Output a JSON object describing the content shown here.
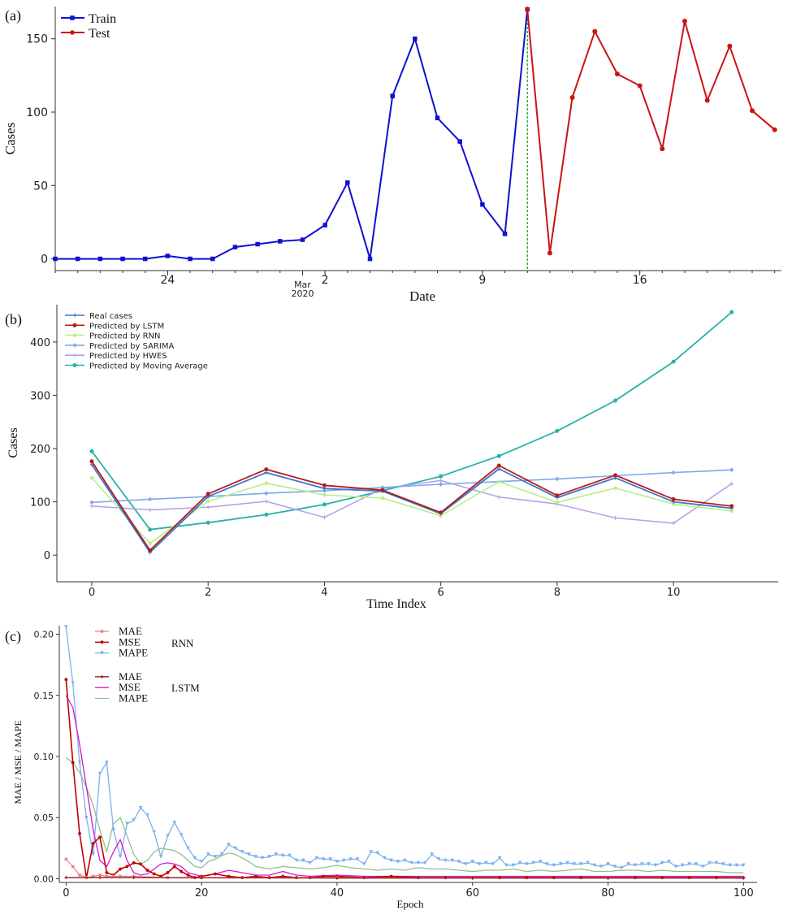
{
  "colors": {
    "train": "#1010d0",
    "test": "#c81414",
    "split_line": "#1a9a1a",
    "real": "#3a78c8",
    "lstm": "#b81c1c",
    "rnn": "#b9ee8a",
    "sarima": "#7ea8ef",
    "hwes": "#b49de8",
    "ma": "#26b3a8",
    "rnn_mae": "#f08080",
    "rnn_mse": "#c00000",
    "rnn_mape": "#7ab0ec",
    "lstm_mae": "#8b0000",
    "lstm_mse": "#d21ad2",
    "lstm_mape": "#8fbf8f"
  },
  "chart_data": [
    {
      "panel_label": "(a)",
      "type": "line",
      "xlabel": "Date",
      "ylabel": "Cases",
      "ylim": [
        -8,
        172
      ],
      "yticks": [
        "0",
        "50",
        "100",
        "150"
      ],
      "xticks": [
        "24",
        "2",
        "9",
        "16"
      ],
      "x_sublabel_month": "Mar",
      "x_sublabel_year": "2020",
      "legend_position": "top-left",
      "series": [
        {
          "name": "Train",
          "x": [
            0,
            1,
            2,
            3,
            4,
            5,
            6,
            7,
            8,
            9,
            10,
            11,
            12,
            13,
            14,
            15,
            16,
            17,
            18,
            19,
            20,
            21
          ],
          "values": [
            0,
            0,
            0,
            0,
            0,
            2,
            0,
            0,
            8,
            10,
            12,
            13,
            23,
            52,
            0,
            111,
            150,
            96,
            80,
            37,
            17,
            170
          ]
        },
        {
          "name": "Test",
          "x": [
            21,
            22,
            23,
            24,
            25,
            26,
            27,
            28,
            29,
            30,
            31,
            32
          ],
          "values": [
            170,
            4,
            110,
            155,
            126,
            118,
            75,
            162,
            108,
            145,
            101,
            88
          ]
        }
      ]
    },
    {
      "panel_label": "(b)",
      "type": "line",
      "xlabel": "Time Index",
      "ylabel": "Cases",
      "xlim": [
        -0.6,
        11.8
      ],
      "ylim": [
        -50,
        470
      ],
      "xticks": [
        "0",
        "2",
        "4",
        "6",
        "8",
        "10"
      ],
      "yticks": [
        "0",
        "100",
        "200",
        "300",
        "400"
      ],
      "legend_position": "top-left",
      "x": [
        0,
        1,
        2,
        3,
        4,
        5,
        6,
        7,
        8,
        9,
        10,
        11
      ],
      "series": [
        {
          "name": "Real cases",
          "values": [
            170,
            5,
            110,
            155,
            125,
            120,
            78,
            162,
            108,
            145,
            100,
            88
          ]
        },
        {
          "name": "Predicted by LSTM",
          "values": [
            176,
            9,
            115,
            161,
            131,
            122,
            80,
            168,
            112,
            150,
            105,
            92
          ]
        },
        {
          "name": "Predicted by RNN",
          "values": [
            145,
            22,
            101,
            135,
            113,
            107,
            74,
            138,
            99,
            126,
            96,
            83
          ]
        },
        {
          "name": "Predicted by SARIMA",
          "values": [
            99,
            105,
            110,
            116,
            121,
            127,
            133,
            138,
            143,
            149,
            155,
            160
          ]
        },
        {
          "name": "Predicted by HWES",
          "values": [
            92,
            85,
            90,
            101,
            71,
            125,
            140,
            109,
            96,
            70,
            60,
            134
          ]
        },
        {
          "name": "Predicted by Moving Average",
          "values": [
            195,
            48,
            61,
            76,
            95,
            121,
            148,
            186,
            233,
            290,
            363,
            456
          ]
        }
      ]
    },
    {
      "panel_label": "(c)",
      "type": "line",
      "xlabel": "Epoch",
      "ylabel": "MAE / MSE / MAPE",
      "xlim": [
        -1,
        102
      ],
      "ylim": [
        -0.003,
        0.207
      ],
      "xticks": [
        "0",
        "20",
        "40",
        "60",
        "80",
        "100"
      ],
      "yticks": [
        "0.00",
        "0.05",
        "0.10",
        "0.15",
        "0.20"
      ],
      "legend_position": "top-left",
      "legend_group_rnn": "RNN",
      "legend_group_lstm": "LSTM",
      "series": [
        {
          "name": "MAE",
          "group": "RNN",
          "x": [
            0,
            1,
            2,
            3,
            4,
            5,
            6,
            7,
            8,
            10,
            15,
            20,
            40,
            60,
            80,
            100
          ],
          "values": [
            0.016,
            0.01,
            0.003,
            0.001,
            0.002,
            0.003,
            0.002,
            0.002,
            0.002,
            0.002,
            0.001,
            0.001,
            0.001,
            0.0008,
            0.0008,
            0.0008
          ]
        },
        {
          "name": "MSE",
          "group": "RNN",
          "x": [
            0,
            1,
            2,
            3,
            4,
            5,
            6,
            7,
            8,
            9,
            10,
            11,
            12,
            13,
            14,
            15,
            16,
            17,
            18,
            19,
            20,
            22,
            24,
            26,
            28,
            30,
            32,
            34,
            36,
            38,
            40,
            44,
            48,
            52,
            56,
            60,
            64,
            68,
            72,
            76,
            80,
            84,
            88,
            92,
            96,
            100
          ],
          "values": [
            0.163,
            0.095,
            0.037,
            0.001,
            0.029,
            0.034,
            0.005,
            0.003,
            0.008,
            0.01,
            0.013,
            0.012,
            0.007,
            0.004,
            0.002,
            0.005,
            0.01,
            0.006,
            0.003,
            0.001,
            0.002,
            0.004,
            0.002,
            0.001,
            0.002,
            0.001,
            0.002,
            0.001,
            0.001,
            0.002,
            0.002,
            0.001,
            0.002,
            0.001,
            0.001,
            0.001,
            0.001,
            0.001,
            0.001,
            0.001,
            0.001,
            0.001,
            0.001,
            0.001,
            0.001,
            0.001
          ]
        },
        {
          "name": "MAPE",
          "group": "RNN",
          "x": [
            0,
            1,
            2,
            3,
            4,
            5,
            6,
            7,
            8,
            9,
            10,
            11,
            12,
            13,
            14,
            15,
            16,
            17,
            18,
            19,
            20,
            21,
            22,
            23,
            24,
            25,
            26,
            27,
            28,
            29,
            30,
            31,
            32,
            33,
            34,
            35,
            36,
            37,
            38,
            39,
            40,
            41,
            42,
            43,
            44,
            45,
            46,
            47,
            48,
            49,
            50,
            51,
            52,
            53,
            54,
            55,
            56,
            57,
            58,
            59,
            60,
            61,
            62,
            63,
            64,
            65,
            66,
            67,
            68,
            69,
            70,
            71,
            72,
            73,
            74,
            75,
            76,
            77,
            78,
            79,
            80,
            81,
            82,
            83,
            84,
            85,
            86,
            87,
            88,
            89,
            90,
            91,
            92,
            93,
            94,
            95,
            96,
            97,
            98,
            99,
            100
          ],
          "values": [
            0.206,
            0.16,
            0.095,
            0.05,
            0.02,
            0.086,
            0.095,
            0.04,
            0.018,
            0.045,
            0.048,
            0.058,
            0.052,
            0.038,
            0.018,
            0.035,
            0.046,
            0.036,
            0.025,
            0.017,
            0.014,
            0.02,
            0.018,
            0.02,
            0.028,
            0.025,
            0.022,
            0.02,
            0.018,
            0.017,
            0.018,
            0.02,
            0.019,
            0.019,
            0.015,
            0.015,
            0.013,
            0.017,
            0.016,
            0.016,
            0.014,
            0.015,
            0.016,
            0.016,
            0.012,
            0.022,
            0.021,
            0.017,
            0.015,
            0.014,
            0.015,
            0.013,
            0.013,
            0.013,
            0.02,
            0.016,
            0.015,
            0.015,
            0.014,
            0.012,
            0.014,
            0.012,
            0.013,
            0.012,
            0.017,
            0.011,
            0.011,
            0.013,
            0.012,
            0.013,
            0.014,
            0.012,
            0.011,
            0.012,
            0.013,
            0.012,
            0.012,
            0.013,
            0.011,
            0.01,
            0.012,
            0.01,
            0.009,
            0.012,
            0.011,
            0.012,
            0.012,
            0.011,
            0.013,
            0.014,
            0.01,
            0.011,
            0.012,
            0.012,
            0.01,
            0.013,
            0.013,
            0.012,
            0.011,
            0.011,
            0.011
          ]
        },
        {
          "name": "MAE",
          "group": "LSTM",
          "x": [
            0,
            5,
            10,
            20,
            40,
            60,
            80,
            100
          ],
          "values": [
            0.001,
            0.001,
            0.001,
            0.0008,
            0.0006,
            0.0006,
            0.0006,
            0.0006
          ]
        },
        {
          "name": "MSE",
          "group": "LSTM",
          "x": [
            0,
            1,
            2,
            3,
            4,
            5,
            6,
            7,
            8,
            9,
            10,
            11,
            12,
            13,
            14,
            15,
            16,
            17,
            18,
            20,
            22,
            24,
            26,
            28,
            30,
            32,
            34,
            36,
            40,
            44,
            48,
            52,
            60,
            70,
            80,
            90,
            100
          ],
          "values": [
            0.15,
            0.14,
            0.11,
            0.075,
            0.04,
            0.015,
            0.01,
            0.022,
            0.032,
            0.015,
            0.005,
            0.003,
            0.004,
            0.008,
            0.012,
            0.013,
            0.012,
            0.01,
            0.005,
            0.002,
            0.004,
            0.007,
            0.005,
            0.003,
            0.003,
            0.006,
            0.003,
            0.002,
            0.003,
            0.002,
            0.002,
            0.002,
            0.002,
            0.002,
            0.002,
            0.002,
            0.002
          ]
        },
        {
          "name": "MAPE",
          "group": "LSTM",
          "x": [
            0,
            1,
            2,
            3,
            4,
            5,
            6,
            7,
            8,
            9,
            10,
            11,
            12,
            13,
            14,
            15,
            16,
            17,
            18,
            19,
            20,
            21,
            22,
            23,
            24,
            25,
            26,
            27,
            28,
            30,
            32,
            34,
            36,
            38,
            40,
            42,
            44,
            46,
            48,
            50,
            52,
            54,
            56,
            58,
            60,
            62,
            64,
            66,
            68,
            70,
            72,
            74,
            76,
            78,
            80,
            82,
            84,
            86,
            88,
            90,
            92,
            94,
            96,
            98,
            100
          ],
          "values": [
            0.099,
            0.095,
            0.087,
            0.075,
            0.06,
            0.04,
            0.022,
            0.045,
            0.05,
            0.035,
            0.02,
            0.012,
            0.015,
            0.022,
            0.025,
            0.024,
            0.023,
            0.02,
            0.015,
            0.01,
            0.009,
            0.014,
            0.016,
            0.019,
            0.021,
            0.02,
            0.017,
            0.014,
            0.01,
            0.008,
            0.01,
            0.009,
            0.008,
            0.009,
            0.011,
            0.009,
            0.008,
            0.007,
            0.008,
            0.007,
            0.009,
            0.008,
            0.008,
            0.007,
            0.006,
            0.007,
            0.007,
            0.008,
            0.006,
            0.007,
            0.006,
            0.007,
            0.008,
            0.006,
            0.006,
            0.007,
            0.007,
            0.006,
            0.007,
            0.006,
            0.006,
            0.006,
            0.006,
            0.005,
            0.005
          ]
        }
      ]
    }
  ]
}
